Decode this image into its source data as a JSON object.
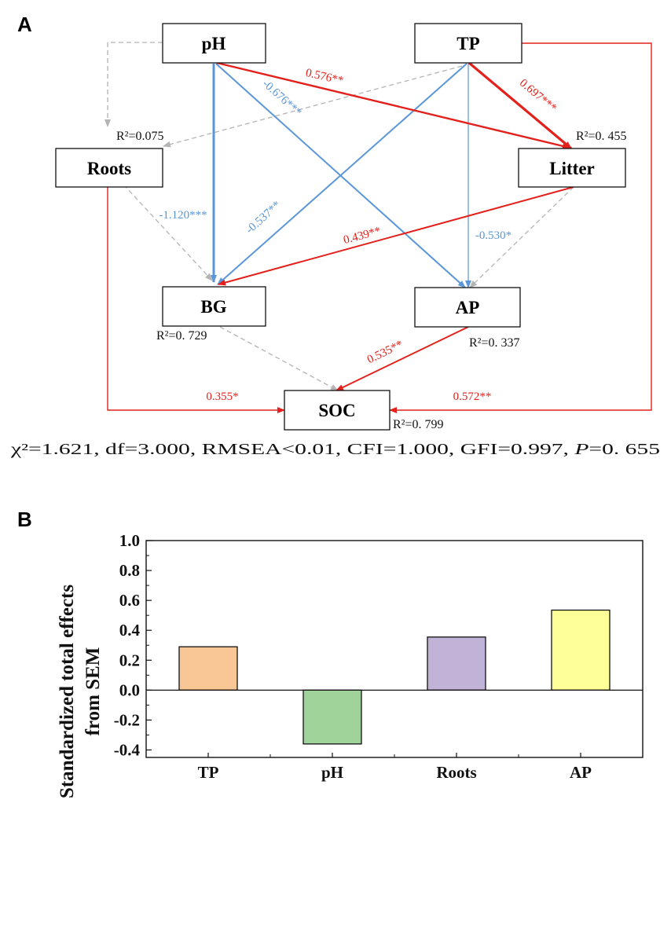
{
  "panel_a": {
    "letter": "A",
    "nodes": {
      "ph": "pH",
      "tp": "TP",
      "roots": "Roots",
      "litter": "Litter",
      "bg": "BG",
      "ap": "AP",
      "soc": "SOC"
    },
    "r2": {
      "roots": "R²=0.075",
      "litter": "R²=0. 455",
      "bg": "R²=0. 729",
      "ap": "R²=0. 337",
      "soc": "R²=0. 799"
    },
    "paths": {
      "ph_litter": "0.576**",
      "ph_ap": "-0.676***",
      "tp_litter": "0.697***",
      "ph_bg": "-1.120***",
      "tp_bg": "-0.537**",
      "litter_bg": "0.439**",
      "tp_ap": "-0.530*",
      "ap_soc": "0.535**",
      "roots_soc": "0.355*",
      "tp_soc": "0.572**"
    },
    "fit_stats": "χ²=1.621,  df=3.000,  RMSEA<0.01,  CFI=1.000,  GFI=0.997,  P=0. 655",
    "colors": {
      "positive": "#e3211c",
      "negative": "#5a96d8",
      "nonsignificant": "#b4b4b4"
    }
  },
  "panel_b": {
    "letter": "B"
  },
  "chart_data": {
    "type": "bar",
    "title": "",
    "xlabel": "",
    "ylabel_lines": [
      "Standardized total effects",
      "from SEM"
    ],
    "categories": [
      "TP",
      "pH",
      "Roots",
      "AP"
    ],
    "values": [
      0.29,
      -0.36,
      0.355,
      0.535
    ],
    "colors": [
      "#f9c796",
      "#a0d39a",
      "#c1b2d7",
      "#ffff99"
    ],
    "ylim": [
      -0.45,
      1.0
    ],
    "yticks": [
      1.0,
      0.8,
      0.6,
      0.4,
      0.2,
      0.0,
      -0.2,
      -0.4
    ],
    "ytick_labels": [
      "1.0",
      "0.8",
      "0.6",
      "0.4",
      "0.2",
      "0.0",
      "-0.2",
      "-0.4"
    ],
    "grid": false
  }
}
